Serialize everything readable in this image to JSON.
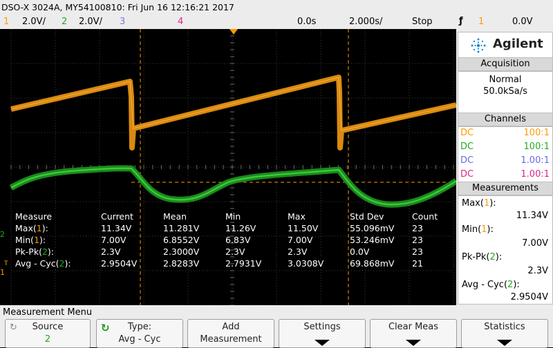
{
  "header": {
    "title": "DSO-X 3024A, MY54100810: Fri Jun 16 12:16:21 2017",
    "ch1_num": "1",
    "ch1_scale": "2.0V/",
    "ch2_num": "2",
    "ch2_scale": "2.0V/",
    "ch3_num": "3",
    "ch4_num": "4",
    "time_delay": "0.0s",
    "time_scale": "2.000s/",
    "run_state": "Stop",
    "trigger_icon": "rising-edge-icon",
    "trigger_source": "1",
    "trigger_level": "0.0V"
  },
  "colors": {
    "ch1": "#ff9a00",
    "ch2": "#22aa22",
    "ch3": "#7a7ae0",
    "ch4": "#e0218a"
  },
  "brand": {
    "name": "Agilent"
  },
  "acquisition": {
    "title": "Acquisition",
    "mode": "Normal",
    "rate": "50.0kSa/s"
  },
  "channels": {
    "title": "Channels",
    "rows": [
      {
        "coupling": "DC",
        "probe": "100:1"
      },
      {
        "coupling": "DC",
        "probe": "100:1"
      },
      {
        "coupling": "DC",
        "probe": "1.00:1"
      },
      {
        "coupling": "DC",
        "probe": "1.00:1"
      }
    ]
  },
  "measurements_panel": {
    "title": "Measurements",
    "items": [
      {
        "name": "Max(",
        "src": "1",
        "close": "):",
        "value": "11.34V"
      },
      {
        "name": "Min(",
        "src": "1",
        "close": "):",
        "value": "7.00V"
      },
      {
        "name": "Pk-Pk(",
        "src": "2",
        "close": "):",
        "value": "2.3V"
      },
      {
        "name": "Avg - Cyc(",
        "src": "2",
        "close": "):",
        "value": "2.9504V"
      }
    ]
  },
  "stats_table": {
    "headers": [
      "Measure",
      "Current",
      "Mean",
      "Min",
      "Max",
      "Std Dev",
      "Count"
    ],
    "rows": [
      {
        "name": "Max(",
        "src": "1",
        "close": "):",
        "cells": [
          "11.34V",
          "11.281V",
          "11.26V",
          "11.50V",
          "55.096mV",
          "23"
        ]
      },
      {
        "name": "Min(",
        "src": "1",
        "close": "):",
        "cells": [
          "7.00V",
          "6.8552V",
          "6.83V",
          "7.00V",
          "53.246mV",
          "23"
        ]
      },
      {
        "name": "Pk-Pk(",
        "src": "2",
        "close": "):",
        "cells": [
          "2.3V",
          "2.3000V",
          "2.3V",
          "2.3V",
          "0.0V",
          "23"
        ]
      },
      {
        "name": "Avg - Cyc(",
        "src": "2",
        "close": "):",
        "cells": [
          "2.9504V",
          "2.8283V",
          "2.7931V",
          "3.0308V",
          "69.868mV",
          "21"
        ]
      }
    ]
  },
  "markers": {
    "ch1": "1",
    "ch2": "2",
    "trigger": "T"
  },
  "menu": {
    "title": "Measurement Menu",
    "keys": [
      {
        "label": "Source",
        "value": "2",
        "icon": "rotate-knob-icon"
      },
      {
        "label": "Type:",
        "value": "Avg - Cyc",
        "icon": "rotate-knob-icon"
      },
      {
        "label": "Add",
        "value": "Measurement"
      },
      {
        "label": "Settings",
        "icon": "submenu-arrow-icon"
      },
      {
        "label": "Clear Meas",
        "icon": "submenu-arrow-icon"
      },
      {
        "label": "Statistics",
        "icon": "submenu-arrow-icon"
      }
    ]
  }
}
